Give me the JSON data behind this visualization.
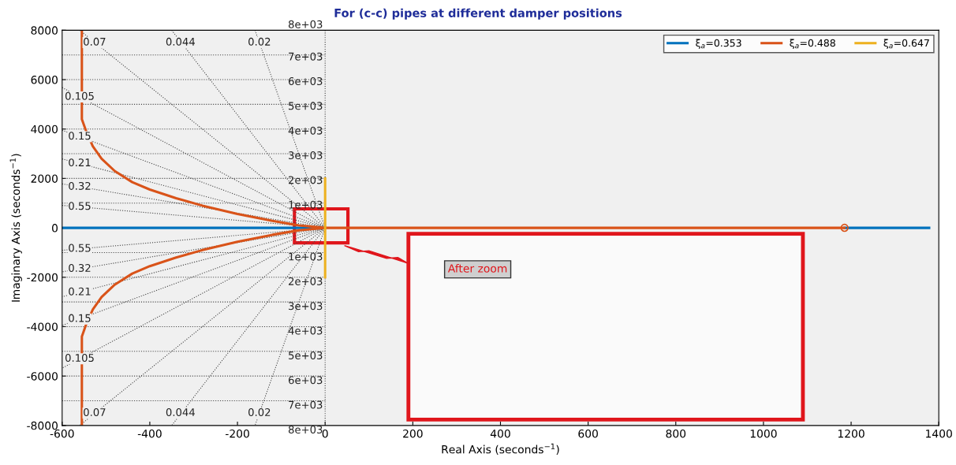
{
  "chart_data": {
    "type": "line",
    "subtitle": "For (c-c) pipes at different damper positions",
    "xlabel": "Real Axis (seconds$^{−1}$)",
    "ylabel": "Imaginary Axis (seconds$^{−1}$)",
    "xlim": [
      -600,
      1400
    ],
    "xticks": [
      -600,
      -400,
      -200,
      0,
      200,
      400,
      600,
      800,
      1000,
      1200,
      1400
    ],
    "ylim": [
      -8000,
      8000
    ],
    "yticks": [
      -8000,
      -6000,
      -4000,
      -2000,
      0,
      2000,
      4000,
      6000,
      8000
    ],
    "legend": "top right",
    "grid": false,
    "series": [
      {
        "color": "#444444",
        "line_style": "dotted",
        "x": [
          -600,
          0,
          -600
        ],
        "values": [
          910,
          0,
          -910
        ]
      },
      {
        "color": "#444444",
        "line_style": "dotted",
        "x": [
          -600,
          0,
          -600
        ],
        "values": [
          1780,
          0,
          -1780
        ]
      },
      {
        "color": "#444444",
        "line_style": "dotted",
        "x": [
          -600,
          0,
          -600
        ],
        "values": [
          2790,
          0,
          -2790
        ]
      },
      {
        "color": "#444444",
        "line_style": "dotted",
        "x": [
          -600,
          0,
          -600
        ],
        "values": [
          3950,
          0,
          -3950
        ]
      },
      {
        "color": "#444444",
        "line_style": "dotted",
        "x": [
          -600,
          0,
          -600
        ],
        "values": [
          5680,
          0,
          -5680
        ]
      },
      {
        "color": "#444444",
        "line_style": "dotted",
        "x": [
          -560,
          0,
          -560
        ],
        "values": [
          8000,
          0,
          -8000
        ]
      },
      {
        "color": "#444444",
        "line_style": "dotted",
        "x": [
          -350,
          0,
          -350
        ],
        "values": [
          8000,
          0,
          -8000
        ]
      },
      {
        "color": "#444444",
        "line_style": "dotted",
        "x": [
          -160,
          0,
          -160
        ],
        "values": [
          8000,
          0,
          -8000
        ]
      },
      {
        "color": "#444444",
        "line_style": "dotted",
        "x": [
          0,
          0
        ],
        "values": [
          8000,
          -8000
        ]
      },
      {
        "color": "#444444",
        "line_style": "dotted",
        "x": [
          -600,
          0
        ],
        "values": [
          1000,
          1000
        ]
      },
      {
        "color": "#444444",
        "line_style": "dotted",
        "x": [
          -600,
          0
        ],
        "values": [
          2000,
          2000
        ]
      },
      {
        "color": "#444444",
        "line_style": "dotted",
        "x": [
          -600,
          0
        ],
        "values": [
          3000,
          3000
        ]
      },
      {
        "color": "#444444",
        "line_style": "dotted",
        "x": [
          -600,
          0
        ],
        "values": [
          4000,
          4000
        ]
      },
      {
        "color": "#444444",
        "line_style": "dotted",
        "x": [
          -600,
          0
        ],
        "values": [
          5000,
          5000
        ]
      },
      {
        "color": "#444444",
        "line_style": "dotted",
        "x": [
          -600,
          0
        ],
        "values": [
          6000,
          6000
        ]
      },
      {
        "color": "#444444",
        "line_style": "dotted",
        "x": [
          -600,
          0
        ],
        "values": [
          7000,
          7000
        ]
      },
      {
        "color": "#444444",
        "line_style": "dotted",
        "x": [
          -600,
          0
        ],
        "values": [
          -1000,
          -1000
        ]
      },
      {
        "color": "#444444",
        "line_style": "dotted",
        "x": [
          -600,
          0
        ],
        "values": [
          -2000,
          -2000
        ]
      },
      {
        "color": "#444444",
        "line_style": "dotted",
        "x": [
          -600,
          0
        ],
        "values": [
          -3000,
          -3000
        ]
      },
      {
        "color": "#444444",
        "line_style": "dotted",
        "x": [
          -600,
          0
        ],
        "values": [
          -4000,
          -4000
        ]
      },
      {
        "color": "#444444",
        "line_style": "dotted",
        "x": [
          -600,
          0
        ],
        "values": [
          -5000,
          -5000
        ]
      },
      {
        "color": "#444444",
        "line_style": "dotted",
        "x": [
          -600,
          0
        ],
        "values": [
          -6000,
          -6000
        ]
      },
      {
        "color": "#444444",
        "line_style": "dotted",
        "x": [
          -600,
          0
        ],
        "values": [
          -7000,
          -7000
        ]
      },
      {
        "name": "ξ$_{a}$=0.353",
        "color": "#0072bd",
        "x": [
          -600,
          0
        ],
        "values": [
          0,
          0
        ]
      },
      {
        "color": "#0072bd",
        "x": [
          1185,
          1378
        ],
        "values": [
          0,
          0
        ]
      },
      {
        "name": "ξ$_{a}$=0.488",
        "color": "#d95319",
        "x": [
          -555,
          -555,
          -545,
          -530,
          -510,
          -480,
          -440,
          -400,
          -340,
          -280,
          -200,
          -120,
          -60,
          0,
          1185
        ],
        "values": [
          8000,
          4400,
          3900,
          3300,
          2800,
          2300,
          1850,
          1550,
          1200,
          900,
          560,
          280,
          100,
          0,
          0
        ]
      },
      {
        "color": "#d95319",
        "x": [
          -555,
          -555,
          -545,
          -530,
          -510,
          -480,
          -440,
          -400,
          -340,
          -280,
          -200,
          -120,
          -60,
          0
        ],
        "values": [
          -8000,
          -4400,
          -3900,
          -3300,
          -2800,
          -2300,
          -1850,
          -1550,
          -1200,
          -900,
          -560,
          -280,
          -100,
          0
        ]
      },
      {
        "type": "scatter",
        "marker": "circle",
        "color": "#d95319",
        "x": [
          1185
        ],
        "values": [
          0
        ]
      },
      {
        "name": "ξ$_{a}$=0.647",
        "color": "#edb120",
        "x": [
          0,
          0
        ],
        "values": [
          2000,
          -2000
        ]
      }
    ],
    "annotations": [
      {
        "text": "0.07",
        "x": -526,
        "y": 7500
      },
      {
        "text": "0.044",
        "x": -330,
        "y": 7500
      },
      {
        "text": "0.02",
        "x": -150,
        "y": 7500
      },
      {
        "text": "0.105",
        "x": -560,
        "y": 5300
      },
      {
        "text": "0.15",
        "x": -560,
        "y": 3690
      },
      {
        "text": "0.21",
        "x": -560,
        "y": 2610
      },
      {
        "text": "0.32",
        "x": -560,
        "y": 1660
      },
      {
        "text": "0.55",
        "x": -560,
        "y": 850
      },
      {
        "text": "0.55",
        "x": -560,
        "y": -850
      },
      {
        "text": "0.32",
        "x": -560,
        "y": -1660
      },
      {
        "text": "0.21",
        "x": -560,
        "y": -2610
      },
      {
        "text": "0.15",
        "x": -560,
        "y": -3690
      },
      {
        "text": "0.105",
        "x": -560,
        "y": -5300
      },
      {
        "text": "0.07",
        "x": -526,
        "y": -7500
      },
      {
        "text": "0.044",
        "x": -330,
        "y": -7500
      },
      {
        "text": "0.02",
        "x": -150,
        "y": -7500
      },
      {
        "text": "8e+03",
        "x": -5,
        "y": 8000
      },
      {
        "text": "7e+03",
        "x": -5,
        "y": 6900
      },
      {
        "text": "6e+03",
        "x": -5,
        "y": 5900
      },
      {
        "text": "5e+03",
        "x": -5,
        "y": 4900
      },
      {
        "text": "4e+03",
        "x": -5,
        "y": 3900
      },
      {
        "text": "3e+03",
        "x": -5,
        "y": 2900
      },
      {
        "text": "2e+03",
        "x": -5,
        "y": 1900
      },
      {
        "text": "1e+03",
        "x": -5,
        "y": 900
      },
      {
        "text": "1e+03",
        "x": -5,
        "y": -1200
      },
      {
        "text": "2e+03",
        "x": -5,
        "y": -2200
      },
      {
        "text": "3e+03",
        "x": -5,
        "y": -3200
      },
      {
        "text": "4e+03",
        "x": -5,
        "y": -4200
      },
      {
        "text": "5e+03",
        "x": -5,
        "y": -5200
      },
      {
        "text": "6e+03",
        "x": -5,
        "y": -6200
      },
      {
        "text": "7e+03",
        "x": -5,
        "y": -7200
      },
      {
        "text": "8e+03",
        "x": -5,
        "y": -8000
      },
      "After zoom"
    ]
  }
}
